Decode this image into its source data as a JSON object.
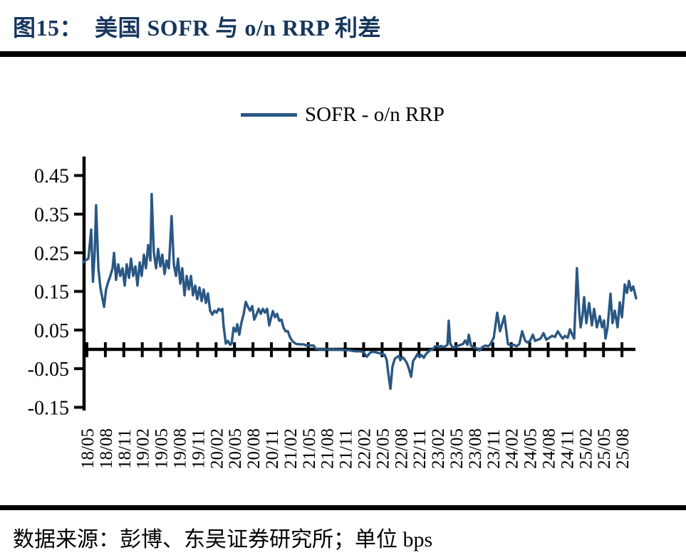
{
  "title": {
    "text": "图15：  美国 SOFR 与 o/n RRP 利差",
    "color": "#17365D"
  },
  "source": {
    "text": "数据来源：彭博、东吴证券研究所；单位 bps"
  },
  "chart_data": {
    "type": "line",
    "title": "美国 SOFR 与 o/n RRP 利差",
    "unit_note": "单位 bps",
    "legend_position": "top",
    "grid": false,
    "axis_color": "#000000",
    "x_labels": [
      "18/05",
      "18/08",
      "18/11",
      "19/02",
      "19/05",
      "19/08",
      "19/11",
      "20/02",
      "20/05",
      "20/08",
      "20/11",
      "21/02",
      "21/05",
      "21/08",
      "21/11",
      "22/02",
      "22/05",
      "22/08",
      "22/11",
      "23/02",
      "23/05",
      "23/08",
      "23/11",
      "24/02",
      "24/05",
      "24/08",
      "24/11",
      "25/02",
      "25/05",
      "25/08"
    ],
    "x_scale_note": "x of each point is a fractional index into x_labels (ticks every 3 months)",
    "y_ticks": [
      0.45,
      0.35,
      0.25,
      0.15,
      0.05,
      -0.05,
      -0.15
    ],
    "ylim": [
      -0.2,
      0.5
    ],
    "series": [
      {
        "name": "SOFR - o/n RRP",
        "color": "#2A5783",
        "points": [
          [
            -0.19,
            0.225
          ],
          [
            -0.08,
            0.23
          ],
          [
            0.08,
            0.235
          ],
          [
            0.23,
            0.31
          ],
          [
            0.33,
            0.175
          ],
          [
            0.42,
            0.25
          ],
          [
            0.5,
            0.373
          ],
          [
            0.62,
            0.21
          ],
          [
            0.73,
            0.16
          ],
          [
            0.85,
            0.13
          ],
          [
            0.93,
            0.11
          ],
          [
            1.04,
            0.155
          ],
          [
            1.16,
            0.175
          ],
          [
            1.27,
            0.19
          ],
          [
            1.39,
            0.21
          ],
          [
            1.47,
            0.25
          ],
          [
            1.58,
            0.18
          ],
          [
            1.7,
            0.22
          ],
          [
            1.81,
            0.19
          ],
          [
            1.93,
            0.21
          ],
          [
            2.05,
            0.165
          ],
          [
            2.16,
            0.22
          ],
          [
            2.28,
            0.185
          ],
          [
            2.39,
            0.235
          ],
          [
            2.51,
            0.19
          ],
          [
            2.63,
            0.215
          ],
          [
            2.74,
            0.165
          ],
          [
            2.86,
            0.225
          ],
          [
            2.97,
            0.19
          ],
          [
            3.09,
            0.245
          ],
          [
            3.2,
            0.21
          ],
          [
            3.32,
            0.27
          ],
          [
            3.44,
            0.23
          ],
          [
            3.51,
            0.402
          ],
          [
            3.63,
            0.25
          ],
          [
            3.75,
            0.21
          ],
          [
            3.86,
            0.26
          ],
          [
            3.98,
            0.215
          ],
          [
            4.09,
            0.245
          ],
          [
            4.21,
            0.195
          ],
          [
            4.32,
            0.23
          ],
          [
            4.44,
            0.21
          ],
          [
            4.59,
            0.345
          ],
          [
            4.71,
            0.22
          ],
          [
            4.83,
            0.19
          ],
          [
            4.94,
            0.235
          ],
          [
            5.06,
            0.17
          ],
          [
            5.17,
            0.21
          ],
          [
            5.29,
            0.14
          ],
          [
            5.41,
            0.19
          ],
          [
            5.52,
            0.155
          ],
          [
            5.64,
            0.19
          ],
          [
            5.75,
            0.14
          ],
          [
            5.87,
            0.165
          ],
          [
            5.98,
            0.13
          ],
          [
            6.1,
            0.16
          ],
          [
            6.22,
            0.125
          ],
          [
            6.33,
            0.155
          ],
          [
            6.45,
            0.12
          ],
          [
            6.56,
            0.145
          ],
          [
            6.68,
            0.1
          ],
          [
            6.8,
            0.09
          ],
          [
            6.91,
            0.1
          ],
          [
            7.03,
            0.095
          ],
          [
            7.14,
            0.105
          ],
          [
            7.26,
            0.1
          ],
          [
            7.34,
            0.105
          ],
          [
            7.41,
            0.06
          ],
          [
            7.53,
            0.015
          ],
          [
            7.64,
            0.022
          ],
          [
            7.76,
            0.012
          ],
          [
            7.84,
            0.015
          ],
          [
            7.95,
            0.056
          ],
          [
            8.07,
            0.046
          ],
          [
            8.15,
            0.065
          ],
          [
            8.26,
            0.038
          ],
          [
            8.38,
            0.07
          ],
          [
            8.49,
            0.09
          ],
          [
            8.61,
            0.123
          ],
          [
            8.73,
            0.11
          ],
          [
            8.84,
            0.1
          ],
          [
            8.96,
            0.112
          ],
          [
            9.07,
            0.077
          ],
          [
            9.19,
            0.09
          ],
          [
            9.31,
            0.105
          ],
          [
            9.42,
            0.092
          ],
          [
            9.54,
            0.105
          ],
          [
            9.65,
            0.095
          ],
          [
            9.77,
            0.105
          ],
          [
            9.88,
            0.062
          ],
          [
            10.0,
            0.085
          ],
          [
            10.08,
            0.099
          ],
          [
            10.19,
            0.083
          ],
          [
            10.31,
            0.092
          ],
          [
            10.42,
            0.074
          ],
          [
            10.54,
            0.077
          ],
          [
            10.66,
            0.056
          ],
          [
            10.77,
            0.047
          ],
          [
            10.89,
            0.047
          ],
          [
            11.0,
            0.032
          ],
          [
            11.12,
            0.023
          ],
          [
            11.24,
            0.017
          ],
          [
            11.35,
            0.014
          ],
          [
            11.54,
            0.013
          ],
          [
            11.74,
            0.013
          ],
          [
            11.89,
            0.01
          ],
          [
            12.08,
            0.01
          ],
          [
            12.28,
            0.01
          ],
          [
            12.39,
            0.002
          ],
          [
            12.59,
            0.0
          ],
          [
            12.82,
            0.0
          ],
          [
            13.05,
            0.0
          ],
          [
            13.28,
            0.0
          ],
          [
            13.51,
            -0.001
          ],
          [
            13.75,
            -0.001
          ],
          [
            13.98,
            -0.002
          ],
          [
            14.21,
            -0.002
          ],
          [
            14.4,
            -0.004
          ],
          [
            14.59,
            -0.005
          ],
          [
            14.79,
            -0.005
          ],
          [
            14.98,
            -0.006
          ],
          [
            15.17,
            -0.019
          ],
          [
            15.37,
            -0.008
          ],
          [
            15.52,
            -0.006
          ],
          [
            15.68,
            -0.008
          ],
          [
            15.83,
            -0.01
          ],
          [
            15.98,
            -0.012
          ],
          [
            16.14,
            -0.014
          ],
          [
            16.25,
            -0.028
          ],
          [
            16.33,
            -0.06
          ],
          [
            16.45,
            -0.102
          ],
          [
            16.56,
            -0.045
          ],
          [
            16.68,
            -0.025
          ],
          [
            16.8,
            -0.02
          ],
          [
            16.91,
            -0.017
          ],
          [
            16.99,
            -0.028
          ],
          [
            17.1,
            -0.02
          ],
          [
            17.22,
            -0.026
          ],
          [
            17.34,
            -0.035
          ],
          [
            17.45,
            -0.05
          ],
          [
            17.57,
            -0.071
          ],
          [
            17.68,
            -0.03
          ],
          [
            17.8,
            -0.022
          ],
          [
            17.91,
            -0.012
          ],
          [
            18.03,
            -0.02
          ],
          [
            18.15,
            -0.015
          ],
          [
            18.26,
            -0.022
          ],
          [
            18.38,
            -0.012
          ],
          [
            18.49,
            -0.007
          ],
          [
            18.61,
            -0.002
          ],
          [
            18.73,
            0.0
          ],
          [
            18.84,
            0.006
          ],
          [
            18.96,
            0.01
          ],
          [
            19.07,
            0.005
          ],
          [
            19.19,
            0.009
          ],
          [
            19.31,
            0.006
          ],
          [
            19.42,
            0.008
          ],
          [
            19.54,
            0.012
          ],
          [
            19.61,
            0.074
          ],
          [
            19.69,
            0.015
          ],
          [
            19.81,
            0.006
          ],
          [
            19.92,
            0.005
          ],
          [
            20.04,
            0.008
          ],
          [
            20.15,
            0.01
          ],
          [
            20.27,
            0.012
          ],
          [
            20.39,
            0.014
          ],
          [
            20.5,
            0.023
          ],
          [
            20.62,
            0.012
          ],
          [
            20.7,
            0.038
          ],
          [
            20.81,
            0.01
          ],
          [
            20.93,
            0.006
          ],
          [
            21.04,
            0.004
          ],
          [
            21.16,
            0.002
          ],
          [
            21.27,
            -0.003
          ],
          [
            21.39,
            0.004
          ],
          [
            21.51,
            0.008
          ],
          [
            21.62,
            0.01
          ],
          [
            21.74,
            0.008
          ],
          [
            21.85,
            0.012
          ],
          [
            22.05,
            0.03
          ],
          [
            22.24,
            0.095
          ],
          [
            22.39,
            0.047
          ],
          [
            22.63,
            0.086
          ],
          [
            22.82,
            0.014
          ],
          [
            22.97,
            0.01
          ],
          [
            23.13,
            0.012
          ],
          [
            23.28,
            0.008
          ],
          [
            23.44,
            0.014
          ],
          [
            23.59,
            0.047
          ],
          [
            23.75,
            0.023
          ],
          [
            23.86,
            0.018
          ],
          [
            24.02,
            0.022
          ],
          [
            24.17,
            0.038
          ],
          [
            24.29,
            0.022
          ],
          [
            24.44,
            0.025
          ],
          [
            24.59,
            0.028
          ],
          [
            24.75,
            0.042
          ],
          [
            24.9,
            0.025
          ],
          [
            25.06,
            0.03
          ],
          [
            25.21,
            0.035
          ],
          [
            25.37,
            0.032
          ],
          [
            25.52,
            0.047
          ],
          [
            25.68,
            0.035
          ],
          [
            25.79,
            0.028
          ],
          [
            25.91,
            0.035
          ],
          [
            26.06,
            0.03
          ],
          [
            26.18,
            0.052
          ],
          [
            26.29,
            0.04
          ],
          [
            26.41,
            0.028
          ],
          [
            26.56,
            0.21
          ],
          [
            26.68,
            0.1
          ],
          [
            26.76,
            0.057
          ],
          [
            26.87,
            0.09
          ],
          [
            26.95,
            0.135
          ],
          [
            27.07,
            0.068
          ],
          [
            27.22,
            0.12
          ],
          [
            27.37,
            0.062
          ],
          [
            27.49,
            0.105
          ],
          [
            27.64,
            0.057
          ],
          [
            27.8,
            0.086
          ],
          [
            27.92,
            0.057
          ],
          [
            28.03,
            0.075
          ],
          [
            28.11,
            0.028
          ],
          [
            28.22,
            0.057
          ],
          [
            28.38,
            0.144
          ],
          [
            28.49,
            0.068
          ],
          [
            28.61,
            0.1
          ],
          [
            28.76,
            0.057
          ],
          [
            28.88,
            0.122
          ],
          [
            29.0,
            0.083
          ],
          [
            29.15,
            0.168
          ],
          [
            29.27,
            0.146
          ],
          [
            29.38,
            0.177
          ],
          [
            29.5,
            0.152
          ],
          [
            29.61,
            0.163
          ],
          [
            29.77,
            0.132
          ]
        ]
      }
    ]
  }
}
